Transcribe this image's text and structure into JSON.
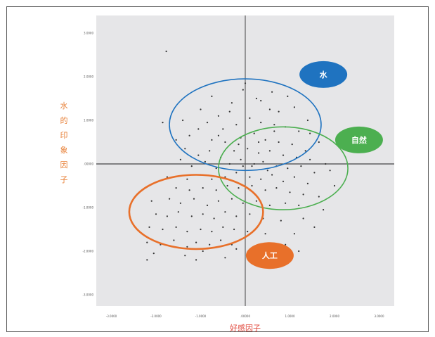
{
  "chart_data": {
    "type": "scatter",
    "ylabel_chars": [
      "水",
      "的",
      "印",
      "象",
      "因",
      "子"
    ],
    "xlabel": "好感因子",
    "xlim": [
      -3.2,
      3.2
    ],
    "ylim": [
      -3.2,
      3.2
    ],
    "x_ticks": [
      -3,
      -2,
      -1,
      0,
      1,
      2,
      3
    ],
    "y_ticks": [
      -3,
      -2,
      -1,
      0,
      1,
      2,
      3
    ],
    "x_tick_labels": [
      "-3.0000",
      "-2.0000",
      "-1.0000",
      ".00000",
      "1.0000",
      "2.0000",
      "3.0000"
    ],
    "y_tick_labels": [
      "3.0000",
      "2.0000",
      "1.0000",
      ".00000",
      "-1.0000",
      "-2.0000",
      "-3.0000"
    ],
    "clusters": [
      {
        "label": "水",
        "color": "#1f73c0",
        "center": [
          0.0,
          0.9
        ],
        "radii": [
          1.7,
          1.05
        ],
        "label_at": [
          1.75,
          2.05
        ]
      },
      {
        "label": "自然",
        "color": "#4caf50",
        "center": [
          0.85,
          -0.1
        ],
        "radii": [
          1.45,
          0.95
        ],
        "label_at": [
          2.55,
          0.55
        ]
      },
      {
        "label": "人工",
        "color": "#e8702a",
        "center": [
          -1.1,
          -1.1
        ],
        "radii": [
          1.5,
          0.85
        ],
        "label_at": [
          0.55,
          -2.1
        ]
      }
    ],
    "points": [
      [
        -1.77,
        2.58
      ],
      [
        -0.75,
        1.55
      ],
      [
        -0.3,
        1.4
      ],
      [
        0.25,
        1.5
      ],
      [
        0.0,
        1.85
      ],
      [
        0.55,
        1.25
      ],
      [
        0.75,
        1.2
      ],
      [
        1.1,
        1.3
      ],
      [
        -0.35,
        1.2
      ],
      [
        -0.6,
        1.1
      ],
      [
        -0.85,
        0.95
      ],
      [
        -1.05,
        0.8
      ],
      [
        -1.25,
        0.65
      ],
      [
        -1.4,
        1.0
      ],
      [
        -1.85,
        0.95
      ],
      [
        -0.5,
        0.8
      ],
      [
        -0.2,
        0.9
      ],
      [
        0.1,
        1.05
      ],
      [
        0.35,
        0.95
      ],
      [
        0.65,
        0.9
      ],
      [
        0.9,
        0.85
      ],
      [
        1.2,
        0.75
      ],
      [
        1.45,
        0.7
      ],
      [
        1.65,
        0.5
      ],
      [
        -0.75,
        0.55
      ],
      [
        -0.45,
        0.5
      ],
      [
        -0.1,
        0.6
      ],
      [
        0.2,
        0.7
      ],
      [
        0.45,
        0.55
      ],
      [
        0.75,
        0.5
      ],
      [
        1.05,
        0.45
      ],
      [
        1.35,
        0.3
      ],
      [
        -1.35,
        0.35
      ],
      [
        -1.05,
        0.2
      ],
      [
        -0.8,
        0.3
      ],
      [
        -0.55,
        0.15
      ],
      [
        -0.25,
        0.3
      ],
      [
        0.05,
        0.35
      ],
      [
        0.3,
        0.25
      ],
      [
        0.55,
        0.3
      ],
      [
        0.85,
        0.2
      ],
      [
        1.15,
        0.15
      ],
      [
        1.45,
        0.1
      ],
      [
        1.8,
        0.0
      ],
      [
        -1.45,
        0.1
      ],
      [
        -1.2,
        -0.05
      ],
      [
        -0.9,
        0.05
      ],
      [
        -0.65,
        -0.1
      ],
      [
        -0.35,
        0.0
      ],
      [
        -0.1,
        0.1
      ],
      [
        0.15,
        -0.05
      ],
      [
        0.4,
        0.05
      ],
      [
        0.7,
        -0.05
      ],
      [
        0.95,
        -0.1
      ],
      [
        1.25,
        -0.05
      ],
      [
        1.55,
        -0.2
      ],
      [
        -1.75,
        -0.3
      ],
      [
        -1.3,
        -0.35
      ],
      [
        -1.0,
        -0.25
      ],
      [
        -0.75,
        -0.35
      ],
      [
        -0.45,
        -0.3
      ],
      [
        -0.2,
        -0.2
      ],
      [
        0.1,
        -0.3
      ],
      [
        0.35,
        -0.35
      ],
      [
        0.6,
        -0.25
      ],
      [
        0.85,
        -0.4
      ],
      [
        1.1,
        -0.3
      ],
      [
        1.4,
        -0.45
      ],
      [
        -1.55,
        -0.55
      ],
      [
        -1.25,
        -0.6
      ],
      [
        -0.95,
        -0.55
      ],
      [
        -0.65,
        -0.6
      ],
      [
        -0.4,
        -0.5
      ],
      [
        -0.15,
        -0.55
      ],
      [
        0.15,
        -0.5
      ],
      [
        0.45,
        -0.6
      ],
      [
        0.7,
        -0.55
      ],
      [
        1.0,
        -0.65
      ],
      [
        1.3,
        -0.7
      ],
      [
        -2.1,
        -0.85
      ],
      [
        -1.7,
        -0.8
      ],
      [
        -1.45,
        -0.9
      ],
      [
        -1.15,
        -0.8
      ],
      [
        -0.85,
        -0.95
      ],
      [
        -0.6,
        -0.85
      ],
      [
        -0.3,
        -0.8
      ],
      [
        -0.05,
        -0.9
      ],
      [
        0.25,
        -0.85
      ],
      [
        0.55,
        -0.95
      ],
      [
        0.9,
        -0.9
      ],
      [
        1.2,
        -0.95
      ],
      [
        -2.0,
        -1.15
      ],
      [
        -1.75,
        -1.2
      ],
      [
        -1.5,
        -1.1
      ],
      [
        -1.2,
        -1.2
      ],
      [
        -0.95,
        -1.15
      ],
      [
        -0.7,
        -1.25
      ],
      [
        -0.45,
        -1.1
      ],
      [
        -0.2,
        -1.2
      ],
      [
        0.1,
        -1.15
      ],
      [
        0.4,
        -1.25
      ],
      [
        0.8,
        -1.3
      ],
      [
        1.3,
        -1.25
      ],
      [
        -2.15,
        -1.45
      ],
      [
        -1.85,
        -1.5
      ],
      [
        -1.55,
        -1.45
      ],
      [
        -1.3,
        -1.55
      ],
      [
        -1.0,
        -1.5
      ],
      [
        -0.75,
        -1.55
      ],
      [
        -0.5,
        -1.45
      ],
      [
        -0.25,
        -1.5
      ],
      [
        0.05,
        -1.55
      ],
      [
        0.45,
        -1.6
      ],
      [
        1.1,
        -1.6
      ],
      [
        -2.2,
        -1.8
      ],
      [
        -1.9,
        -1.85
      ],
      [
        -1.6,
        -1.75
      ],
      [
        -1.3,
        -1.9
      ],
      [
        -1.1,
        -1.8
      ],
      [
        -0.8,
        -1.85
      ],
      [
        -0.55,
        -1.75
      ],
      [
        -0.3,
        -1.85
      ],
      [
        0.9,
        -1.85
      ],
      [
        -2.05,
        -2.05
      ],
      [
        -1.35,
        -2.1
      ],
      [
        -0.95,
        -2.0
      ],
      [
        -0.2,
        -1.95
      ],
      [
        1.2,
        -2.0
      ],
      [
        -2.2,
        -2.2
      ],
      [
        -1.1,
        -2.2
      ],
      [
        -0.45,
        -2.15
      ],
      [
        1.55,
        -1.45
      ],
      [
        1.75,
        -1.05
      ],
      [
        1.65,
        -0.75
      ],
      [
        2.0,
        -0.5
      ],
      [
        1.9,
        -0.15
      ],
      [
        0.6,
        1.65
      ],
      [
        -0.05,
        1.7
      ],
      [
        0.35,
        1.45
      ],
      [
        -1.0,
        1.25
      ],
      [
        -1.55,
        0.55
      ],
      [
        0.95,
        1.55
      ],
      [
        1.4,
        1.0
      ],
      [
        0.2,
        0.0
      ],
      [
        -0.05,
        -0.05
      ],
      [
        0.5,
        -0.15
      ],
      [
        0.3,
        0.5
      ],
      [
        -0.15,
        0.45
      ],
      [
        0.65,
        0.75
      ],
      [
        -0.6,
        0.65
      ]
    ]
  }
}
